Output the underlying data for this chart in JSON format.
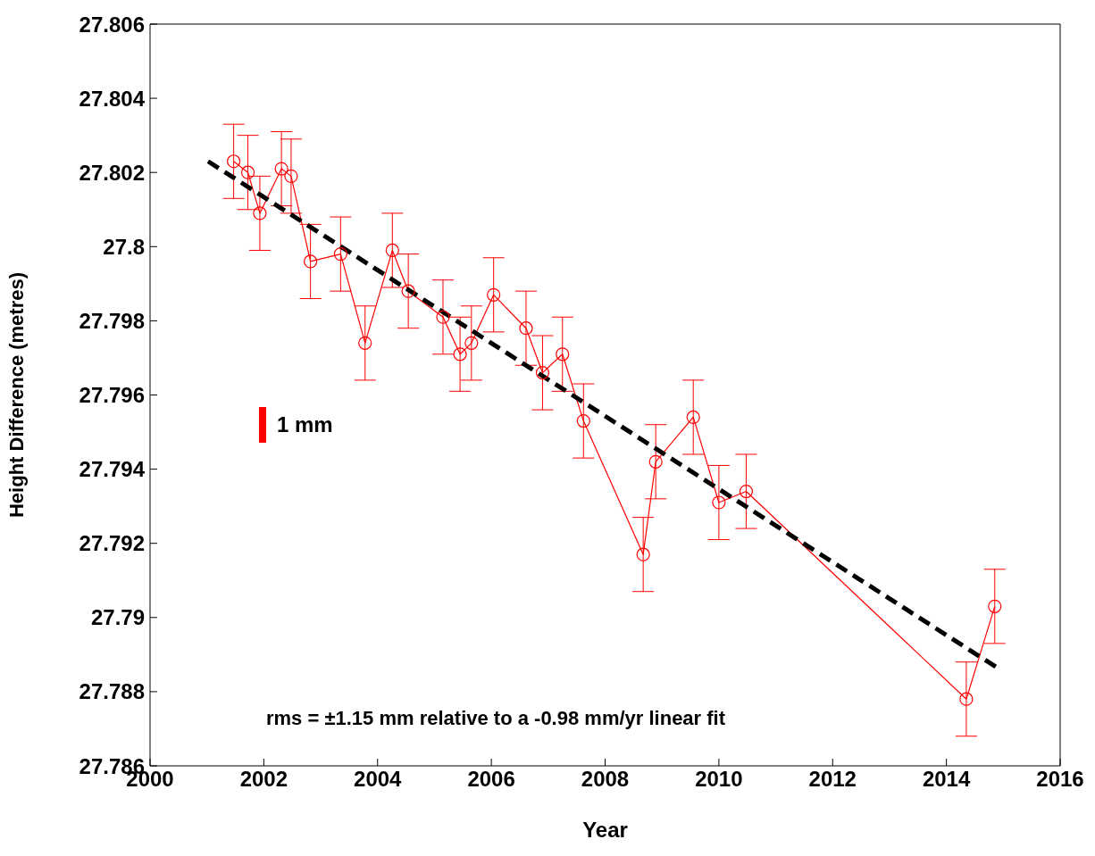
{
  "chart_data": {
    "type": "line",
    "xlabel": "Year",
    "ylabel": "Height Difference (metres)",
    "xlim": [
      2000,
      2016
    ],
    "xticks": [
      2000,
      2002,
      2004,
      2006,
      2008,
      2010,
      2012,
      2014,
      2016
    ],
    "ylim": [
      27.786,
      27.806
    ],
    "yticks": [
      27.786,
      27.788,
      27.79,
      27.792,
      27.794,
      27.796,
      27.798,
      27.8,
      27.802,
      27.804,
      27.806
    ],
    "grid": false,
    "legend": false,
    "marker": "circle",
    "line_style": "solid",
    "series": [
      {
        "color": "#ff0000",
        "x": [
          2001.47,
          2001.72,
          2001.93,
          2002.31,
          2002.48,
          2002.82,
          2003.35,
          2003.78,
          2004.26,
          2004.54,
          2005.15,
          2005.45,
          2005.65,
          2006.04,
          2006.61,
          2006.9,
          2007.25,
          2007.62,
          2008.67,
          2008.89,
          2009.55,
          2010.0,
          2010.48,
          2014.35,
          2014.85
        ],
        "values": [
          27.8023,
          27.802,
          27.8009,
          27.8021,
          27.8019,
          27.7996,
          27.7998,
          27.7974,
          27.7999,
          27.7988,
          27.7981,
          27.7971,
          27.7974,
          27.7987,
          27.7978,
          27.7966,
          27.7971,
          27.7953,
          27.7917,
          27.7942,
          27.7954,
          27.7931,
          27.7934,
          27.7878,
          27.7903
        ],
        "errors": [
          0.001,
          0.001,
          0.001,
          0.001,
          0.001,
          0.001,
          0.001,
          0.001,
          0.001,
          0.001,
          0.001,
          0.001,
          0.001,
          0.001,
          0.001,
          0.001,
          0.001,
          0.001,
          0.001,
          0.001,
          0.001,
          0.001,
          0.001,
          0.001,
          0.001
        ]
      },
      {
        "type": "line",
        "color": "#000000",
        "x": [
          2001.02,
          2014.94
        ],
        "values": [
          27.8023,
          27.7886
        ],
        "line_style": "dashed",
        "marker": "none"
      }
    ],
    "annotations": [
      "1 mm",
      "rms = ±1.15 mm relative to a -0.98 mm/yr linear fit"
    ]
  }
}
